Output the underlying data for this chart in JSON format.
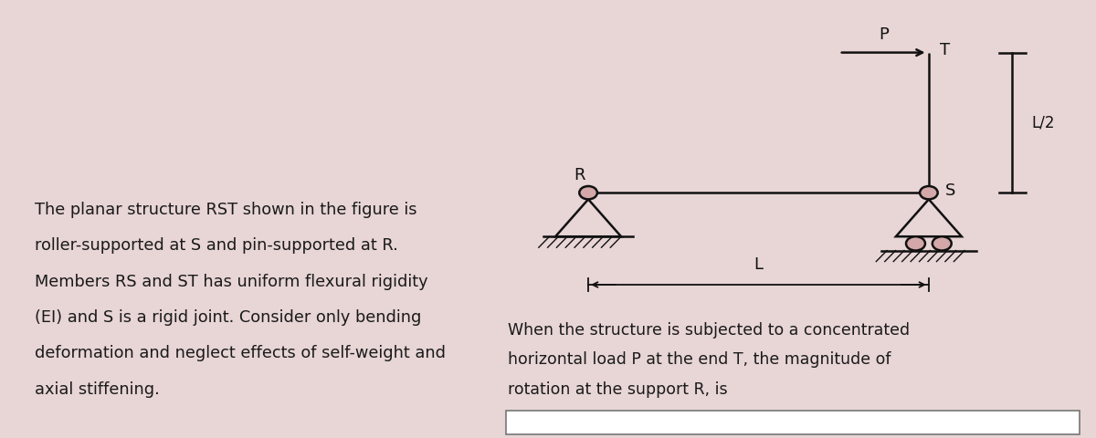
{
  "bg_left": "#e8d5d5",
  "bg_right": "#d4a8a8",
  "bg_white": "#ffffff",
  "text_color": "#1a1a1a",
  "left_text_lines": [
    "The planar structure RST shown in the figure is",
    "roller-supported at S and pin-supported at R.",
    "Members RS and ST has uniform flexural rigidity",
    "(EI) and S is a rigid joint. Consider only bending",
    "deformation and neglect effects of self-weight and",
    "axial stiffening."
  ],
  "bottom_text_lines": [
    "When the structure is subjected to a concentrated",
    "horizontal load P at the end T, the magnitude of",
    "rotation at the support R, is"
  ],
  "label_R": "R",
  "label_S": "S",
  "label_T": "T",
  "label_P": "P",
  "label_L": "L",
  "label_L2": "L/2",
  "struct_color": "#111111"
}
